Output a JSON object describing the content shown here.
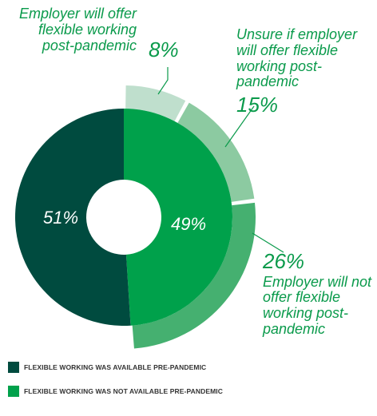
{
  "colors": {
    "available": "#004b3f",
    "not_available": "#00a14b",
    "will_offer": "#bfdfcd",
    "unsure": "#8ccaa1",
    "will_not_offer": "#45b070",
    "annotation_text": "#0a9a4b",
    "background": "#ffffff"
  },
  "annotations": {
    "will_offer": {
      "text": "Employer will offer flexible working post-pandemic",
      "pct": "8%"
    },
    "unsure": {
      "text": "Unsure if employer will offer flexible working post-pandemic",
      "pct": "15%"
    },
    "will_not": {
      "text": "Employer will not offer flexible working post-pandemic",
      "pct": "26%"
    }
  },
  "legend": [
    {
      "label": "FLEXIBLE WORKING WAS AVAILABLE PRE-PANDEMIC",
      "color": "#004b3f"
    },
    {
      "label": "FLEXIBLE WORKING WAS NOT AVAILABLE PRE-PANDEMIC",
      "color": "#00a14b"
    }
  ],
  "chart_data": {
    "type": "pie",
    "subtype": "nested-donut",
    "inner": {
      "labels": [
        "FLEXIBLE WORKING WAS AVAILABLE PRE-PANDEMIC",
        "FLEXIBLE WORKING WAS NOT AVAILABLE PRE-PANDEMIC"
      ],
      "values": [
        51,
        49
      ],
      "value_labels": [
        "51%",
        "49%"
      ]
    },
    "outer": {
      "parent": "FLEXIBLE WORKING WAS NOT AVAILABLE PRE-PANDEMIC",
      "labels": [
        "Employer will offer flexible working post-pandemic",
        "Unsure if employer will offer flexible working post-pandemic",
        "Employer will not offer flexible working post-pandemic"
      ],
      "values": [
        8,
        15,
        26
      ],
      "value_labels": [
        "8%",
        "15%",
        "26%"
      ]
    },
    "legend_position": "bottom-left"
  }
}
